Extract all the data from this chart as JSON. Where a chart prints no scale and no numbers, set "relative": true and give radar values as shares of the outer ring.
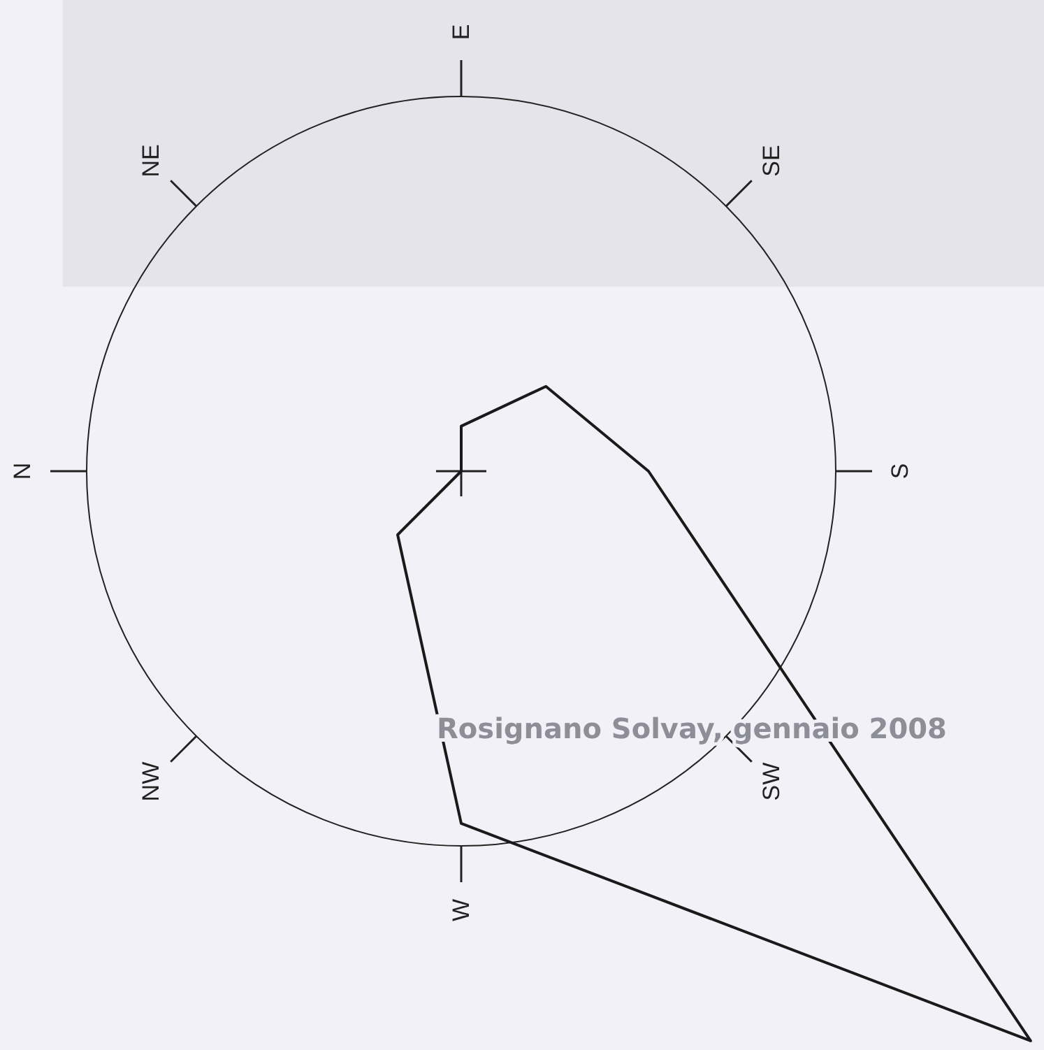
{
  "chart_data": {
    "type": "radar",
    "relative": true,
    "categories": [
      "E",
      "SE",
      "S",
      "SW",
      "W",
      "NW",
      "N",
      "NE"
    ],
    "series": [
      {
        "color": "#1a1a1a",
        "values": [
          0.12,
          0.32,
          0.5,
          2.15,
          0.94,
          0.24,
          0,
          0
        ]
      }
    ],
    "annotations": [
      "Rosignano Solvay, gennaio 2008"
    ]
  }
}
